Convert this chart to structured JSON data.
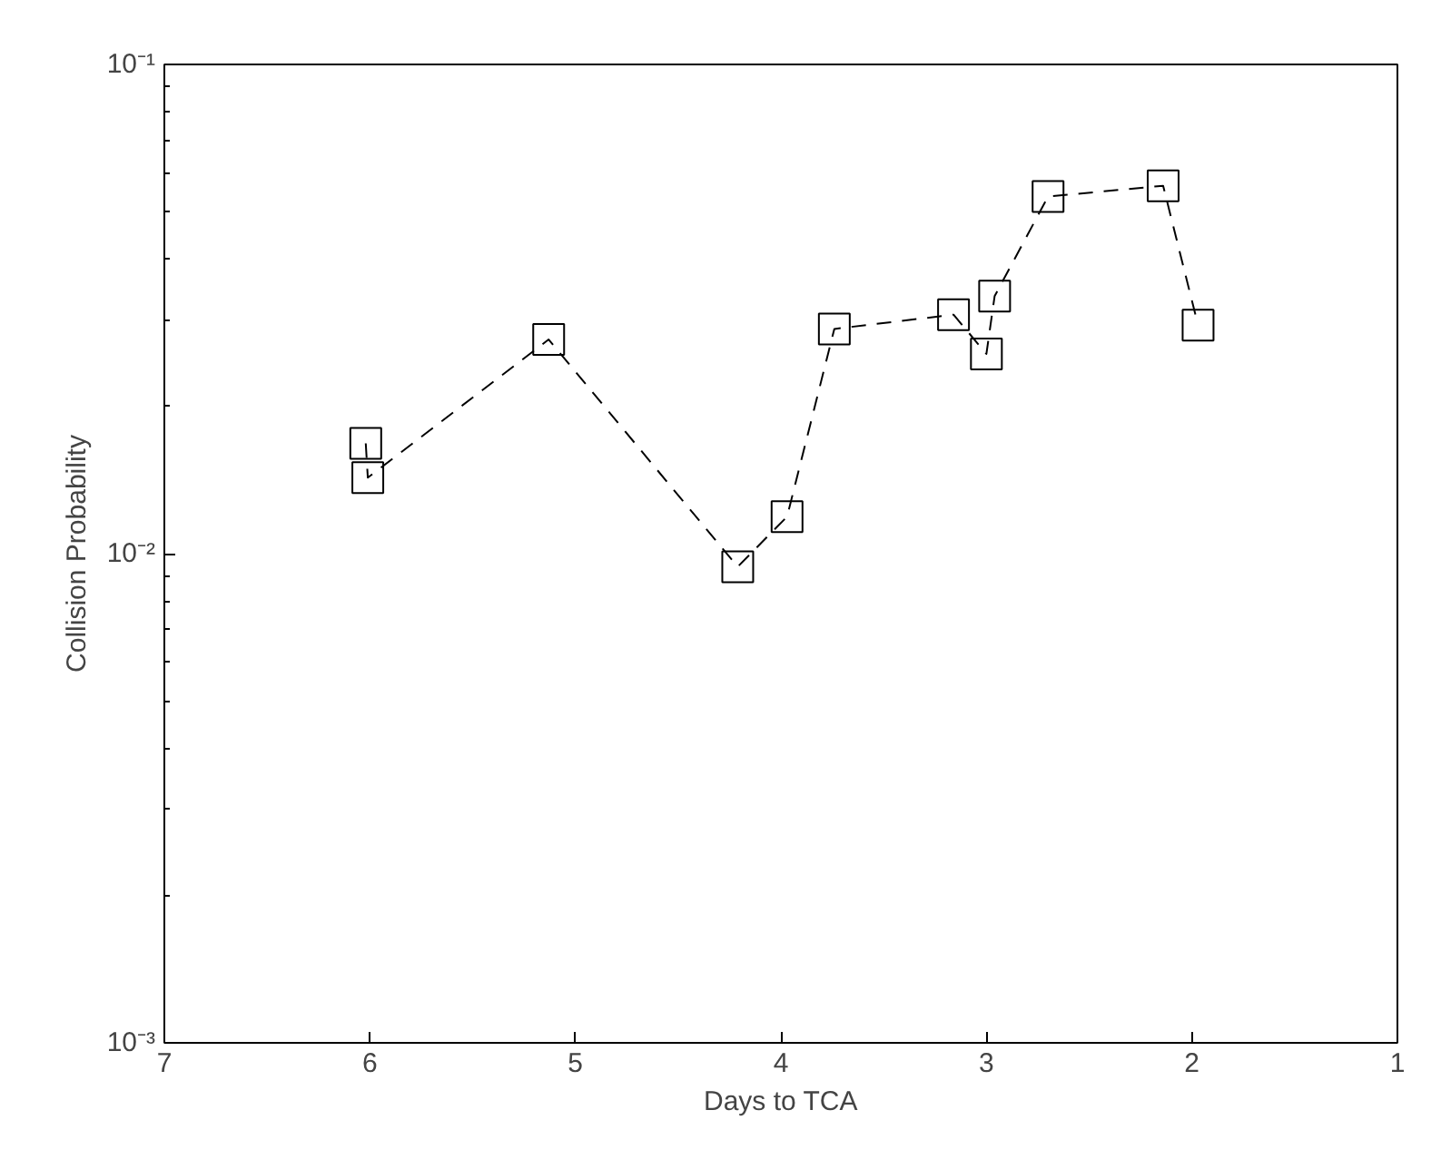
{
  "chart_data": {
    "type": "line",
    "xlabel": "Days to TCA",
    "ylabel": "Collision Probability",
    "x": [
      6.02,
      6.01,
      5.13,
      4.21,
      3.97,
      3.74,
      3.16,
      3.0,
      2.96,
      2.7,
      2.14,
      1.97
    ],
    "series": [
      {
        "color": "#000000",
        "values": [
          0.0168,
          0.0143,
          0.0274,
          0.0094,
          0.0119,
          0.0288,
          0.0308,
          0.0256,
          0.0336,
          0.0537,
          0.0565,
          0.0293
        ]
      }
    ],
    "xlim": [
      7,
      1
    ],
    "xticks": [
      7,
      6,
      5,
      4,
      3,
      2,
      1
    ],
    "ylim": [
      0.001,
      0.1
    ],
    "yticks": [
      {
        "value": 0.001,
        "label": "10⁻³"
      },
      {
        "value": 0.01,
        "label": "10⁻²"
      },
      {
        "value": 0.1,
        "label": "10⁻¹"
      }
    ],
    "log": true,
    "grid": false,
    "marker": "square",
    "line_style": "dashed"
  }
}
